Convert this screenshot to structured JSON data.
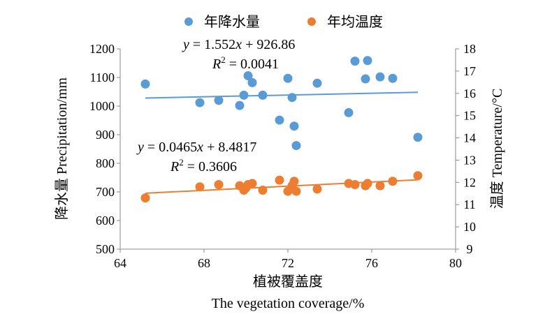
{
  "chart_data": {
    "type": "scatter",
    "xlabel_cn": "植被覆盖度",
    "xlabel_en": "The vegetation coverage/%",
    "ylabel_left": "降水量 Precipitation/mm",
    "ylabel_right": "温度 Temperature/°C",
    "xlim": [
      64,
      80
    ],
    "xticks": [
      "64",
      "68",
      "72",
      "76",
      "80"
    ],
    "ylim_left": [
      500,
      1200
    ],
    "yticks_left": [
      "500",
      "600",
      "700",
      "800",
      "900",
      "1000",
      "1100",
      "1200"
    ],
    "ylim_right": [
      9,
      18
    ],
    "yticks_right": [
      "9",
      "10",
      "11",
      "12",
      "13",
      "14",
      "15",
      "16",
      "17",
      "18"
    ],
    "legend": {
      "placement": "top-center",
      "entries": [
        "年降水量",
        "年均温度"
      ]
    },
    "series": [
      {
        "name": "年降水量",
        "axis": "left",
        "color": "#5B9BD5",
        "points": [
          [
            65.2,
            1077
          ],
          [
            67.8,
            1012
          ],
          [
            68.7,
            1020
          ],
          [
            69.7,
            1002
          ],
          [
            69.9,
            1038
          ],
          [
            70.1,
            1106
          ],
          [
            70.3,
            1082
          ],
          [
            70.8,
            1038
          ],
          [
            71.6,
            951
          ],
          [
            72.0,
            1097
          ],
          [
            72.2,
            1030
          ],
          [
            72.3,
            930
          ],
          [
            72.4,
            862
          ],
          [
            73.4,
            1080
          ],
          [
            74.9,
            977
          ],
          [
            75.2,
            1157
          ],
          [
            75.7,
            1095
          ],
          [
            75.8,
            1159
          ],
          [
            76.4,
            1102
          ],
          [
            77.0,
            1097
          ],
          [
            78.2,
            891
          ]
        ],
        "trendline": {
          "slope": 1.552,
          "intercept": 926.86,
          "x_range": [
            65.2,
            78.2
          ]
        },
        "equation": {
          "y": "y",
          "eq": " = 1.552",
          "x": "x",
          "rest": " + 926.86",
          "r2_label": "R",
          "r2_sup": "2",
          "r2_value": " = 0.0041"
        }
      },
      {
        "name": "年均温度",
        "axis": "right",
        "color": "#ED7D31",
        "points": [
          [
            65.2,
            11.3
          ],
          [
            67.8,
            11.8
          ],
          [
            68.7,
            11.9
          ],
          [
            69.7,
            11.85
          ],
          [
            69.9,
            11.65
          ],
          [
            70.0,
            11.75
          ],
          [
            70.1,
            11.9
          ],
          [
            70.3,
            11.95
          ],
          [
            70.8,
            11.65
          ],
          [
            71.6,
            12.1
          ],
          [
            72.0,
            11.6
          ],
          [
            72.2,
            11.85
          ],
          [
            72.3,
            12.05
          ],
          [
            72.4,
            11.6
          ],
          [
            73.4,
            11.7
          ],
          [
            74.9,
            11.95
          ],
          [
            75.2,
            11.9
          ],
          [
            75.7,
            11.85
          ],
          [
            75.8,
            11.95
          ],
          [
            76.4,
            11.85
          ],
          [
            77.0,
            12.05
          ],
          [
            78.2,
            12.3
          ]
        ],
        "trendline": {
          "slope": 0.0465,
          "intercept": 8.4817,
          "x_range": [
            65.2,
            78.2
          ]
        },
        "equation": {
          "y": "y",
          "eq": " = 0.0465",
          "x": "x",
          "rest": " + 8.4817",
          "r2_label": "R",
          "r2_sup": "2",
          "r2_value": " = 0.3606"
        }
      }
    ]
  }
}
